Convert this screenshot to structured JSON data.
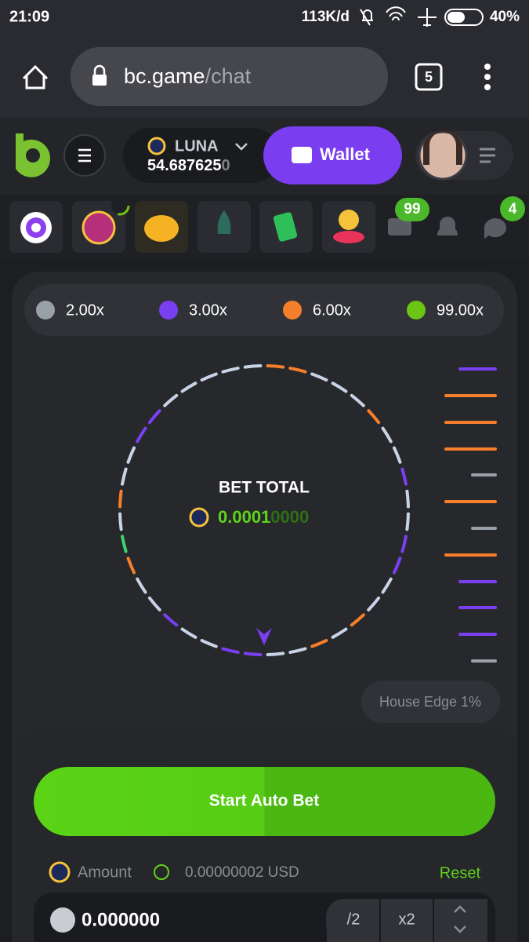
{
  "status": {
    "time": "21:09",
    "network": "113K/d",
    "battery": "40%"
  },
  "browser": {
    "url_host": "bc.game",
    "url_path": "/chat",
    "tabs": "5"
  },
  "header": {
    "currency": "LUNA",
    "balance_main": "54.687625",
    "balance_dim": "0",
    "wallet": "Wallet"
  },
  "badges": {
    "mail": "99",
    "chat": "4"
  },
  "multipliers": [
    {
      "label": "2.00x",
      "color": "#9aa0a8"
    },
    {
      "label": "3.00x",
      "color": "#7b3ff2"
    },
    {
      "label": "6.00x",
      "color": "#f57f2a"
    },
    {
      "label": "99.00x",
      "color": "#6cc414"
    }
  ],
  "wheel": {
    "title": "BET TOTAL",
    "amount_main": "0.0001",
    "amount_dim": "0000"
  },
  "house_edge": "House Edge 1%",
  "start_button": "Start Auto Bet",
  "amount": {
    "label": "Amount",
    "usd": "0.00000002 USD",
    "reset": "Reset",
    "input": "0.000000",
    "half": "/2",
    "double": "x2"
  }
}
